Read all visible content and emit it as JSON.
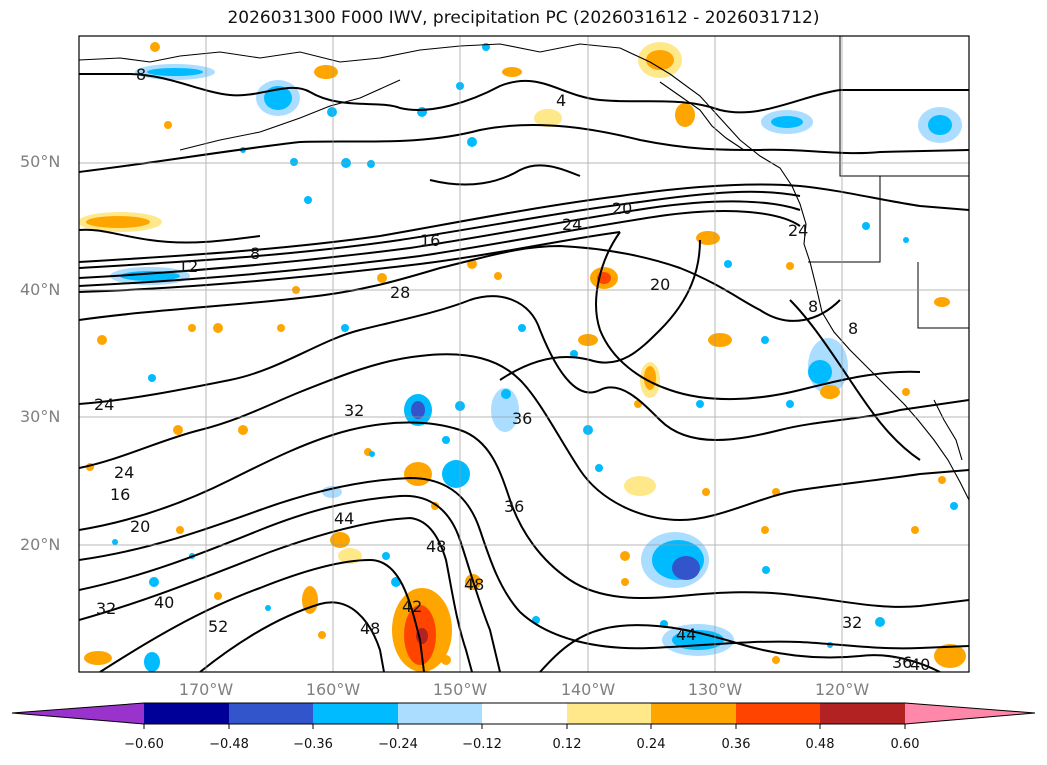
{
  "title": "2026031300 F000 IWV, precipitation PC (2026031612 - 2026031712)",
  "lat_labels": [
    "50°N",
    "40°N",
    "30°N",
    "20°N"
  ],
  "lon_labels": [
    "170°W",
    "160°W",
    "150°W",
    "140°W",
    "130°W",
    "120°W"
  ],
  "colorbar": {
    "ticks": [
      "−0.60",
      "−0.48",
      "−0.36",
      "−0.24",
      "−0.12",
      "0.12",
      "0.24",
      "0.36",
      "0.48",
      "0.60"
    ],
    "colors": [
      "#9933cc",
      "#000099",
      "#3355cc",
      "#00bbff",
      "#aaddff",
      "#ffffff",
      "#ffe88a",
      "#ffa500",
      "#ff4400",
      "#b22222",
      "#ff88aa"
    ]
  },
  "contour_labels": [
    "8",
    "4",
    "20",
    "24",
    "16",
    "8",
    "12",
    "28",
    "20",
    "24",
    "8",
    "8",
    "32",
    "24",
    "36",
    "36",
    "24",
    "16",
    "20",
    "44",
    "48",
    "48",
    "52",
    "42",
    "48",
    "40",
    "32",
    "44",
    "32",
    "36",
    "40"
  ]
}
